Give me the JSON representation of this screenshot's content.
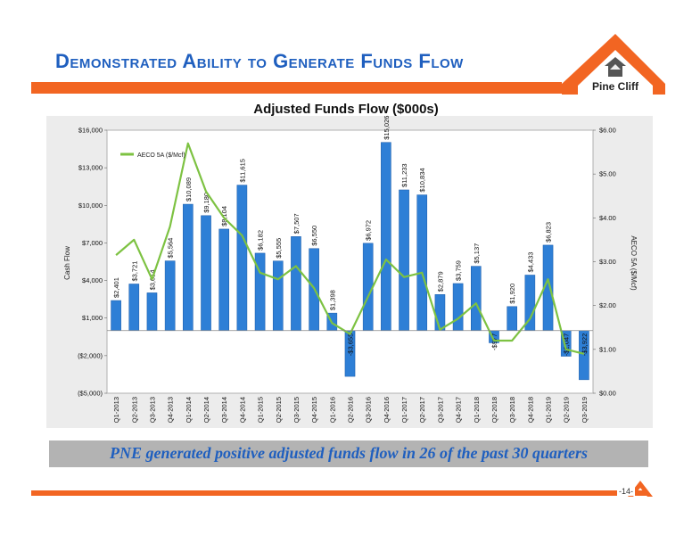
{
  "slide": {
    "title": "Demonstrated Ability to Generate Funds Flow",
    "logo_text": "Pine Cliff",
    "banner": "PNE generated positive adjusted funds flow in 26 of the past 30 quarters",
    "page_number": "-14-"
  },
  "colors": {
    "accent": "#f26522",
    "title_blue": "#1f5fbf",
    "bar_blue": "#2e7fd6",
    "line_green": "#7dc242",
    "banner_gray": "#b3b3b3"
  },
  "chart_data": {
    "type": "bar",
    "title": "Adjusted Funds Flow ($000s)",
    "ylabel": "Cash Flow",
    "y2label": "AECO 5A ($/Mcf)",
    "ylim": [
      -5000,
      16000
    ],
    "yticks": [
      "($5,000)",
      "($2,000)",
      "$1,000",
      "$4,000",
      "$7,000",
      "$10,000",
      "$13,000",
      "$16,000"
    ],
    "y2lim": [
      0,
      6
    ],
    "y2ticks": [
      "$0.00",
      "$1.00",
      "$2.00",
      "$3.00",
      "$4.00",
      "$5.00",
      "$6.00"
    ],
    "categories": [
      "Q1-2013",
      "Q2-2013",
      "Q3-2013",
      "Q4-2013",
      "Q1-2014",
      "Q2-2014",
      "Q3-2014",
      "Q4-2014",
      "Q1-2015",
      "Q2-2015",
      "Q3-2015",
      "Q4-2015",
      "Q1-2016",
      "Q2-2016",
      "Q3-2016",
      "Q4-2016",
      "Q1-2017",
      "Q2-2017",
      "Q3-2017",
      "Q4-2017",
      "Q1-2018",
      "Q2-2018",
      "Q3-2018",
      "Q4-2018",
      "Q1-2019",
      "Q2-2019",
      "Q3-2019"
    ],
    "series": [
      {
        "kind": "bar",
        "values": [
          2401,
          3721,
          3014,
          5564,
          10089,
          9180,
          8104,
          11615,
          6182,
          5555,
          7507,
          6550,
          1398,
          -3655,
          6972,
          15026,
          11233,
          10834,
          2879,
          3759,
          5137,
          -977,
          1920,
          4433,
          6823,
          -2047,
          -3922
        ],
        "labels": [
          "$2,401",
          "$3,721",
          "$3,014",
          "$5,564",
          "$10,089",
          "$9,180",
          "$8,104",
          "$11,615",
          "$6,182",
          "$5,555",
          "$7,507",
          "$6,550",
          "$1,398",
          "-$3,655",
          "$6,972",
          "$15,026",
          "$11,233",
          "$10,834",
          "$2,879",
          "$3,759",
          "$5,137",
          "-$977",
          "$1,920",
          "$4,433",
          "$6,823",
          "-$2,047",
          "-$3,922"
        ]
      },
      {
        "name": "AECO 5A ($/Mcf)",
        "kind": "line",
        "axis": "right",
        "values": [
          3.15,
          3.5,
          2.6,
          3.8,
          5.7,
          4.6,
          4.0,
          3.6,
          2.75,
          2.6,
          2.9,
          2.4,
          1.6,
          1.35,
          2.2,
          3.05,
          2.65,
          2.75,
          1.45,
          1.7,
          2.05,
          1.2,
          1.2,
          1.7,
          2.6,
          1.0,
          0.9
        ]
      }
    ],
    "legend_position": "top-left",
    "grid": false
  }
}
